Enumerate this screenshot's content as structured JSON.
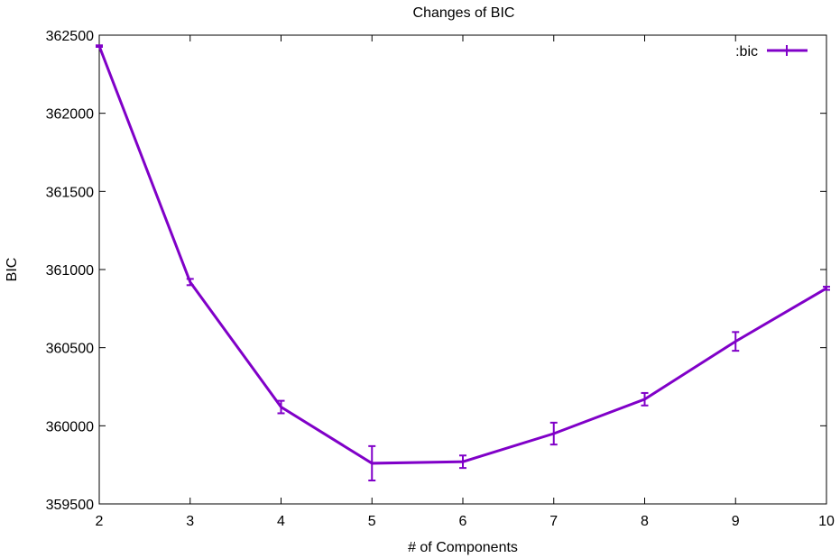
{
  "chart_data": {
    "type": "line",
    "title": "Changes of BIC",
    "xlabel": "# of Components",
    "ylabel": "BIC",
    "x": [
      2,
      3,
      4,
      5,
      6,
      7,
      8,
      9,
      10
    ],
    "series": [
      {
        "name": ":bic",
        "values": [
          362430,
          360920,
          360120,
          359760,
          359770,
          359950,
          360170,
          360540,
          360880
        ],
        "error": [
          5,
          20,
          40,
          110,
          40,
          70,
          40,
          60,
          10
        ],
        "color": "#8000c8"
      }
    ],
    "xlim": [
      2,
      10
    ],
    "ylim": [
      359500,
      362500
    ],
    "x_ticks": [
      2,
      3,
      4,
      5,
      6,
      7,
      8,
      9,
      10
    ],
    "y_ticks": [
      359500,
      360000,
      360500,
      361000,
      361500,
      362000,
      362500
    ],
    "legend_position": "top-right",
    "grid": false
  }
}
